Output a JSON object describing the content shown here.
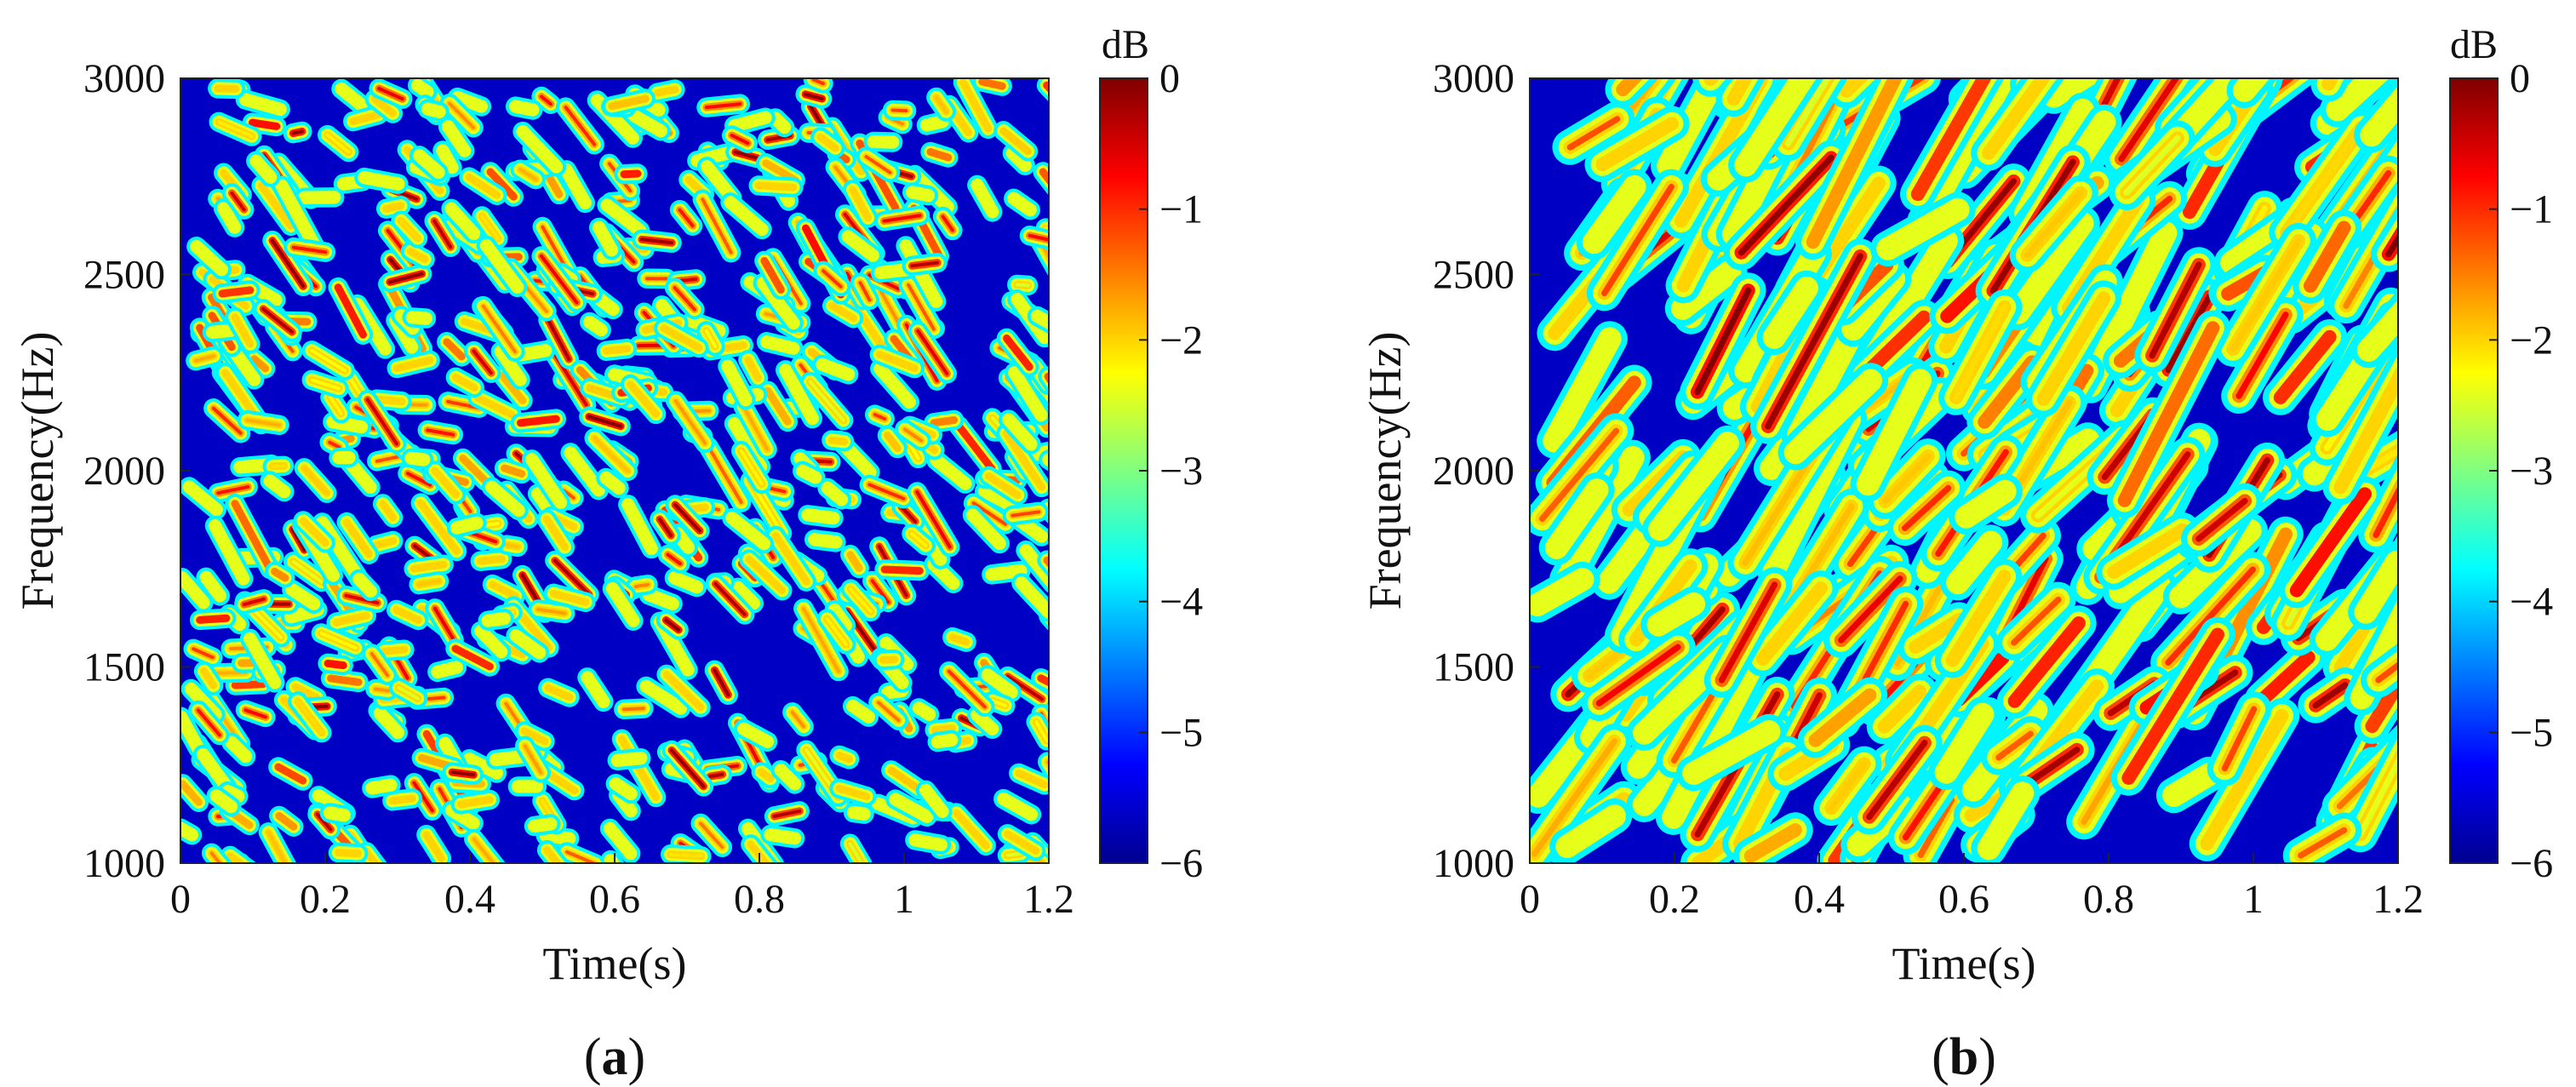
{
  "colormap": {
    "stops": [
      "#00008f",
      "#0000ff",
      "#007fff",
      "#00ffff",
      "#80ff80",
      "#ffff00",
      "#ff7f00",
      "#ff0000",
      "#7f0000"
    ]
  },
  "chart_data": [
    {
      "type": "heatmap",
      "panel_label": "a",
      "xlabel": "Time(s)",
      "ylabel": "Frequency(Hz)",
      "xlim": [
        0,
        1.2
      ],
      "ylim": [
        1000,
        3000
      ],
      "xticks": [
        0,
        0.2,
        0.4,
        0.6,
        0.8,
        1,
        1.2
      ],
      "xtick_labels": [
        "0",
        "0.2",
        "0.4",
        "0.6",
        "0.8",
        "1",
        "1.2"
      ],
      "yticks": [
        1000,
        1500,
        2000,
        2500,
        3000
      ],
      "ytick_labels": [
        "1000",
        "1500",
        "2000",
        "2500",
        "3000"
      ],
      "colorbar": {
        "label": "dB",
        "range": [
          -6,
          0
        ],
        "ticks": [
          0,
          -1,
          -2,
          -3,
          -4,
          -5,
          -6
        ],
        "tick_labels": [
          "0",
          "−1",
          "−2",
          "−3",
          "−4",
          "−5",
          "−6"
        ]
      },
      "pattern": {
        "seed": 11,
        "stripe_count": 620,
        "len_min": 0.012,
        "len_max": 0.05,
        "slope_min": -3500,
        "slope_max": 500,
        "stripe_width": 9,
        "peak_db_min": -2.5
      }
    },
    {
      "type": "heatmap",
      "panel_label": "b",
      "xlabel": "Time(s)",
      "ylabel": "Frequency(Hz)",
      "xlim": [
        0,
        1.2
      ],
      "ylim": [
        1000,
        3000
      ],
      "xticks": [
        0,
        0.2,
        0.4,
        0.6,
        0.8,
        1,
        1.2
      ],
      "xtick_labels": [
        "0",
        "0.2",
        "0.4",
        "0.6",
        "0.8",
        "1",
        "1.2"
      ],
      "yticks": [
        1000,
        1500,
        2000,
        2500,
        3000
      ],
      "ytick_labels": [
        "1000",
        "1500",
        "2000",
        "2500",
        "3000"
      ],
      "colorbar": {
        "label": "dB",
        "range": [
          -6,
          0
        ],
        "ticks": [
          0,
          -1,
          -2,
          -3,
          -4,
          -5,
          -6
        ],
        "tick_labels": [
          "0",
          "−1",
          "−2",
          "−3",
          "−4",
          "−5",
          "−6"
        ]
      },
      "pattern": {
        "seed": 29,
        "stripe_count": 300,
        "len_min": 0.04,
        "len_max": 0.13,
        "slope_min": 1000,
        "slope_max": 3800,
        "stripe_width": 16,
        "peak_db_min": -2.5
      }
    }
  ]
}
